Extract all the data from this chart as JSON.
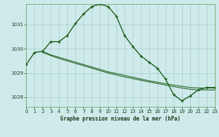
{
  "title": "Graphe pression niveau de la mer (hPa)",
  "background_color": "#ceeaea",
  "grid_color": "#a8cccc",
  "line_color": "#1a5c1a",
  "xlim": [
    0,
    23
  ],
  "ylim": [
    1027.6,
    1031.85
  ],
  "yticks": [
    1028,
    1029,
    1030,
    1031
  ],
  "xticks": [
    0,
    1,
    2,
    3,
    4,
    5,
    6,
    7,
    8,
    9,
    10,
    11,
    12,
    13,
    14,
    15,
    16,
    17,
    18,
    19,
    20,
    21,
    22,
    23
  ],
  "s1_x": [
    0,
    1,
    2,
    3,
    4,
    5,
    6,
    7,
    8,
    9,
    10,
    11,
    12,
    13,
    14,
    15,
    16,
    17,
    18,
    19,
    20,
    21,
    22,
    23
  ],
  "s1_y": [
    1029.35,
    1029.85,
    1029.9,
    1030.3,
    1030.3,
    1030.55,
    1031.05,
    1031.45,
    1031.75,
    1031.85,
    1031.75,
    1031.35,
    1030.55,
    1030.1,
    1029.7,
    1029.45,
    1029.2,
    1028.75,
    1028.1,
    1027.85,
    1028.05,
    1028.3,
    1028.4,
    1028.4
  ],
  "s2_x": [
    2,
    3,
    4,
    5,
    6,
    7,
    8,
    9,
    10,
    11,
    12,
    13,
    14,
    15,
    16,
    17,
    18,
    19,
    20,
    21,
    22,
    23
  ],
  "s2_y": [
    1029.9,
    1029.75,
    1029.65,
    1029.55,
    1029.45,
    1029.35,
    1029.25,
    1029.15,
    1029.05,
    1028.98,
    1028.9,
    1028.83,
    1028.75,
    1028.68,
    1028.62,
    1028.56,
    1028.5,
    1028.45,
    1028.4,
    1028.38,
    1028.38,
    1028.38
  ],
  "s3_x": [
    2,
    3,
    4,
    5,
    6,
    7,
    8,
    9,
    10,
    11,
    12,
    13,
    14,
    15,
    16,
    17,
    18,
    19,
    20,
    21,
    22,
    23
  ],
  "s3_y": [
    1029.85,
    1029.72,
    1029.6,
    1029.5,
    1029.4,
    1029.3,
    1029.2,
    1029.1,
    1029.0,
    1028.92,
    1028.84,
    1028.77,
    1028.7,
    1028.63,
    1028.57,
    1028.5,
    1028.44,
    1028.38,
    1028.33,
    1028.3,
    1028.3,
    1028.3
  ]
}
